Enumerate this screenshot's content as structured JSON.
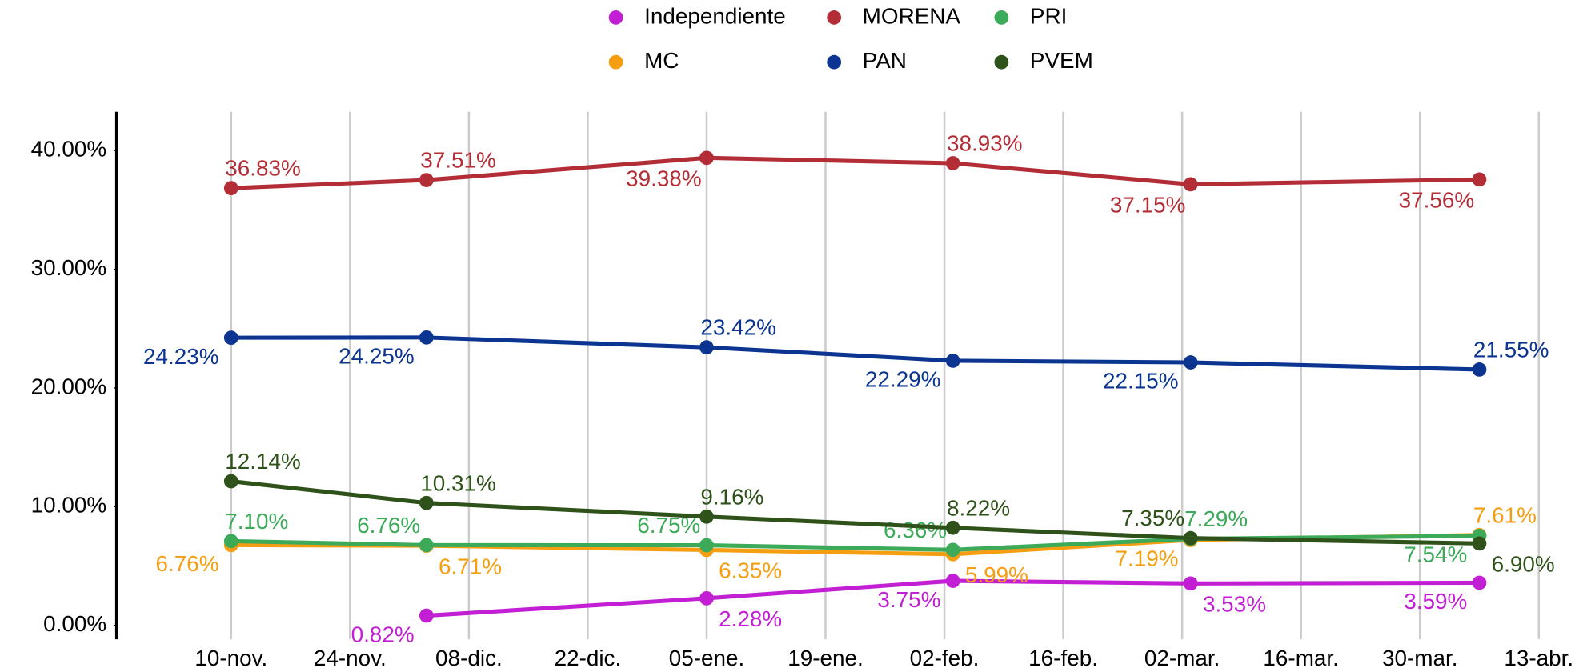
{
  "chart_data": {
    "type": "line",
    "x": [
      0,
      23,
      56,
      85,
      113,
      147
    ],
    "xlim": [
      -13,
      158
    ],
    "xticks": [
      {
        "value": 0,
        "label": "10-nov."
      },
      {
        "value": 14,
        "label": "24-nov."
      },
      {
        "value": 28,
        "label": "08-dic."
      },
      {
        "value": 42,
        "label": "22-dic."
      },
      {
        "value": 56,
        "label": "05-ene."
      },
      {
        "value": 70,
        "label": "19-ene."
      },
      {
        "value": 84,
        "label": "02-feb."
      },
      {
        "value": 98,
        "label": "16-feb."
      },
      {
        "value": 112,
        "label": "02-mar."
      },
      {
        "value": 126,
        "label": "16-mar."
      },
      {
        "value": 140,
        "label": "30-mar."
      },
      {
        "value": 154,
        "label": "13-abr."
      }
    ],
    "ylim": [
      -1,
      43
    ],
    "yticks": [
      {
        "value": 0,
        "label": "0.00%"
      },
      {
        "value": 10,
        "label": "10.00%"
      },
      {
        "value": 20,
        "label": "20.00%"
      },
      {
        "value": 30,
        "label": "30.00%"
      },
      {
        "value": 40,
        "label": "40.00%"
      }
    ],
    "grid": true,
    "series": [
      {
        "name": "Independiente",
        "color": "#c21fd4",
        "values": [
          null,
          0.82,
          2.28,
          3.75,
          3.53,
          3.59
        ],
        "value_labels": [
          null,
          "0.82%",
          "2.28%",
          "3.75%",
          "3.53%",
          "3.59%"
        ]
      },
      {
        "name": "MORENA",
        "color": "#b22d36",
        "values": [
          36.83,
          37.51,
          39.38,
          38.93,
          37.15,
          37.56
        ],
        "value_labels": [
          "36.83%",
          "37.51%",
          "39.38%",
          "38.93%",
          "37.15%",
          "37.56%"
        ]
      },
      {
        "name": "PRI",
        "color": "#3daa5a",
        "values": [
          7.1,
          6.76,
          6.75,
          6.36,
          7.29,
          7.54
        ],
        "value_labels": [
          "7.10%",
          "6.76%",
          "6.75%",
          "6.36%",
          "7.29%",
          "7.54%"
        ]
      },
      {
        "name": "MC",
        "color": "#f59e12",
        "values": [
          6.76,
          6.71,
          6.35,
          5.99,
          7.19,
          7.61
        ],
        "value_labels": [
          "6.76%",
          "6.71%",
          "6.35%",
          "5.99%",
          "7.19%",
          "7.61%"
        ]
      },
      {
        "name": "PAN",
        "color": "#0b3591",
        "values": [
          24.23,
          24.25,
          23.42,
          22.29,
          22.15,
          21.55
        ],
        "value_labels": [
          "24.23%",
          "24.25%",
          "23.42%",
          "22.29%",
          "22.15%",
          "21.55%"
        ]
      },
      {
        "name": "PVEM",
        "color": "#2e5219",
        "values": [
          12.14,
          10.31,
          9.16,
          8.22,
          7.35,
          6.9
        ],
        "value_labels": [
          "12.14%",
          "10.31%",
          "9.16%",
          "8.22%",
          "7.35%",
          "6.90%"
        ]
      }
    ]
  }
}
